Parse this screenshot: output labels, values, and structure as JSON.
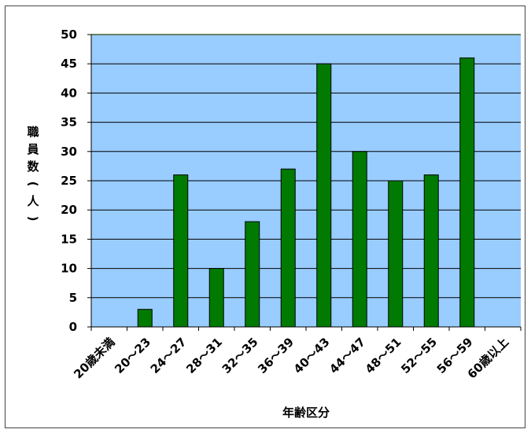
{
  "chart_data": {
    "type": "bar",
    "categories": [
      "20歳未満",
      "20～23",
      "24～27",
      "28～31",
      "32～35",
      "36～39",
      "40～43",
      "44～47",
      "48～51",
      "52～55",
      "56～59",
      "60歳以上"
    ],
    "values": [
      0,
      3,
      26,
      10,
      18,
      27,
      45,
      30,
      25,
      26,
      46,
      0
    ],
    "title": "",
    "xlabel": "年齢区分",
    "ylabel": "職員数(人)",
    "ylabel_chars": [
      "職",
      "員",
      "数",
      "(",
      "人",
      ")"
    ],
    "ylim": [
      0,
      50
    ],
    "yticks": [
      0,
      5,
      10,
      15,
      20,
      25,
      30,
      35,
      40,
      45,
      50
    ],
    "grid": true,
    "legend": "none",
    "colors": {
      "plot_bg": "#99ccff",
      "bar_fill": "#007a00",
      "bar_stroke": "#000000",
      "gridline": "#000000",
      "plot_top_border": "#ccffcc"
    }
  }
}
